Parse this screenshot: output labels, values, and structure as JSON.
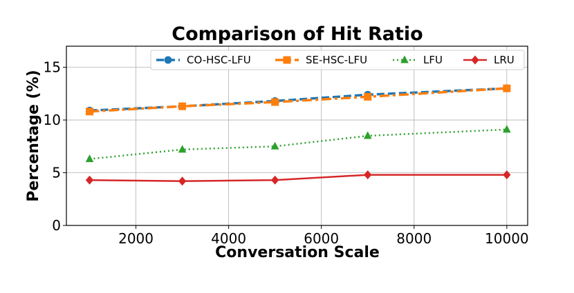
{
  "chart_data": {
    "type": "line",
    "title": "Comparison of Hit Ratio",
    "xlabel": "Conversation Scale",
    "ylabel": "Percentage (%)",
    "x": [
      1000,
      3000,
      5000,
      7000,
      10000
    ],
    "xlim": [
      500,
      10450
    ],
    "ylim": [
      0,
      17
    ],
    "xticks": [
      2000,
      4000,
      6000,
      8000,
      10000
    ],
    "yticks": [
      0,
      5,
      10,
      15
    ],
    "grid": true,
    "legend_position": "top-right",
    "series": [
      {
        "name": "CO-HSC-LFU",
        "values": [
          10.9,
          11.3,
          11.8,
          12.4,
          13.0
        ],
        "color": "#1f77b4",
        "dash": "11,5",
        "marker": "circle",
        "width": 3.5
      },
      {
        "name": "SE-HSC-LFU",
        "values": [
          10.8,
          11.3,
          11.7,
          12.2,
          13.0
        ],
        "color": "#ff7f0e",
        "dash": "14,5,4,5",
        "marker": "square",
        "width": 3.5
      },
      {
        "name": "LFU",
        "values": [
          6.3,
          7.2,
          7.5,
          8.5,
          9.1
        ],
        "color": "#2ca02c",
        "dash": "2,4",
        "marker": "triangle",
        "width": 2.5
      },
      {
        "name": "LRU",
        "values": [
          4.3,
          4.2,
          4.3,
          4.8,
          4.8
        ],
        "color": "#d62728",
        "dash": "",
        "marker": "diamond",
        "width": 2.5
      }
    ]
  }
}
